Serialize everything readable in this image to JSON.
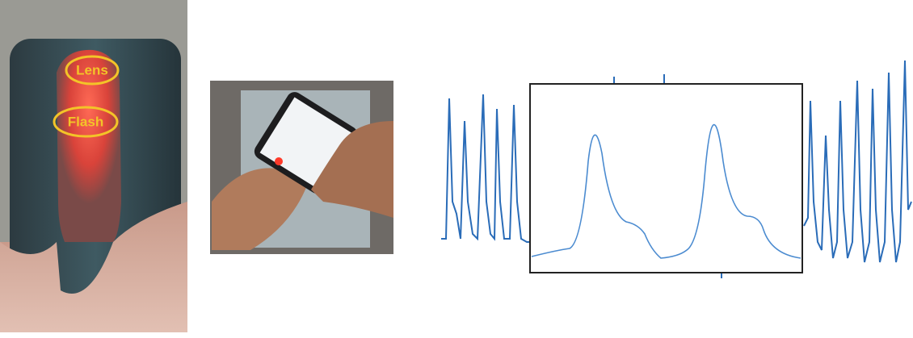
{
  "annotations": {
    "lens": "Lens",
    "flash": "Flash"
  }
}
